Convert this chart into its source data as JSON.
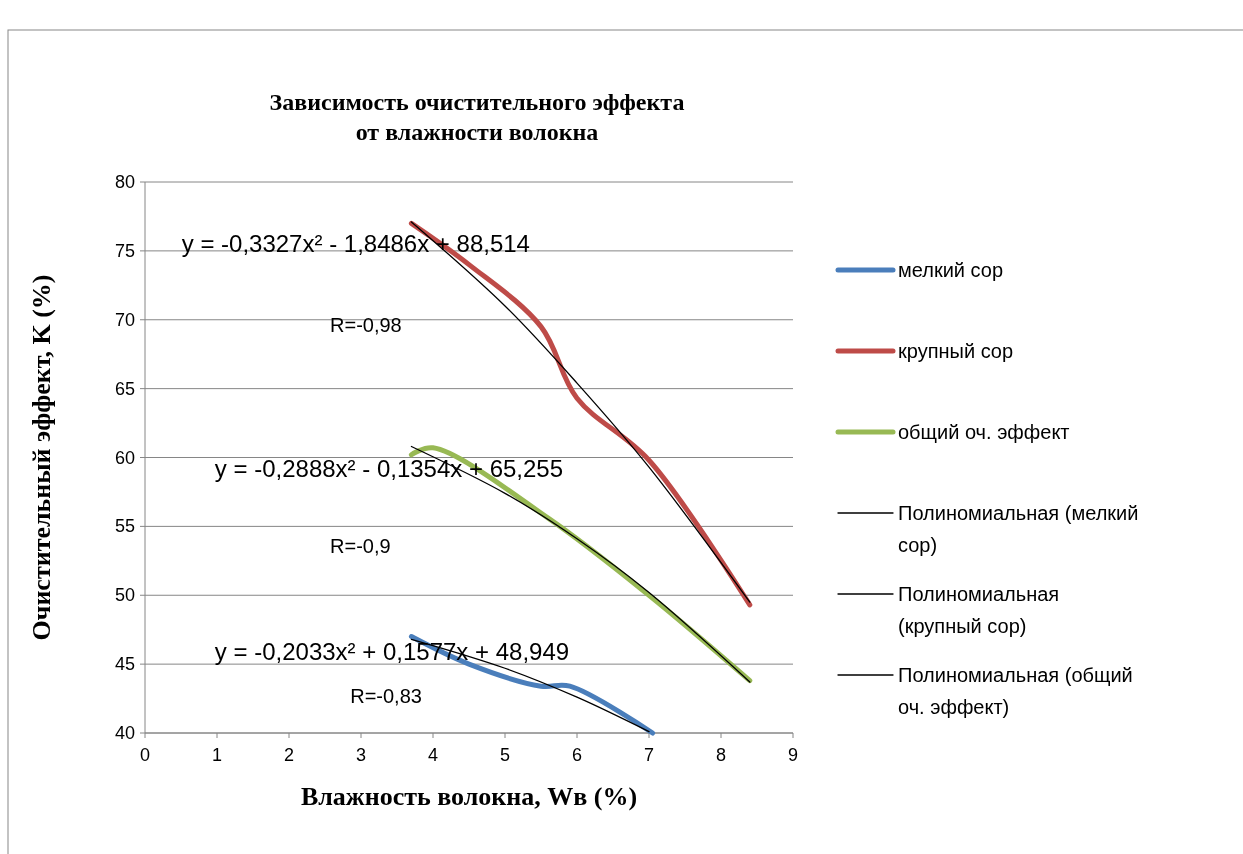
{
  "chart_data": {
    "type": "line",
    "title": "Зависимость очистительного эффекта\nот влажности волокна",
    "xlabel": "Влажность волокна, Wв (%)",
    "ylabel": "Очистительный эффект, K (%)",
    "xlim": [
      0,
      9
    ],
    "xticks": [
      0,
      1,
      2,
      3,
      4,
      5,
      6,
      7,
      8,
      9
    ],
    "ylim": [
      40,
      80
    ],
    "yticks": [
      40,
      45,
      50,
      55,
      60,
      65,
      70,
      75,
      80
    ],
    "grid": "y",
    "legend": "right",
    "line_style": "solid",
    "marker": "none",
    "series": [
      {
        "name": "мелкий сор",
        "color": "#4a7ebb",
        "x": [
          3.7,
          4.5,
          5.5,
          5.9,
          7.05
        ],
        "values": [
          47,
          45,
          43.4,
          43.4,
          40
        ]
      },
      {
        "name": "крупный сор",
        "color": "#be4b48",
        "x": [
          3.7,
          4.5,
          5.5,
          6,
          7,
          8.4
        ],
        "values": [
          77,
          74,
          69.5,
          64.3,
          59.8,
          49.3
        ]
      },
      {
        "name": "общий оч. эффект",
        "color": "#98b954",
        "x": [
          3.7,
          4,
          5.6,
          7,
          8.4
        ],
        "values": [
          60.2,
          60.7,
          55.6,
          50,
          43.8
        ]
      },
      {
        "name": "Полиномиальная (мелкий сор)",
        "color": "#000000",
        "x": [
          3.7,
          5,
          6,
          7
        ],
        "values": [
          46.8,
          44.7,
          42.6,
          40.1
        ]
      },
      {
        "name": "Полиномиальная (крупный сор)",
        "color": "#000000",
        "x": [
          3.7,
          5,
          6,
          7,
          8.4
        ],
        "values": [
          77.1,
          71,
          65.4,
          59.3,
          49.5
        ]
      },
      {
        "name": "Полиномиальная (общий оч. эффект)",
        "color": "#000000",
        "x": [
          3.7,
          5,
          6,
          7,
          8.4
        ],
        "values": [
          60.8,
          57.4,
          54.1,
          50.2,
          43.7
        ]
      }
    ],
    "annotations": [
      "y = -0,3327x² - 1,8486x + 88,514",
      "R=-0,98",
      "y = -0,2888x² - 0,1354x + 65,255",
      "R=-0,9",
      "y = -0,2033x² + 0,1577x + 48,949",
      "R=-0,83"
    ]
  }
}
